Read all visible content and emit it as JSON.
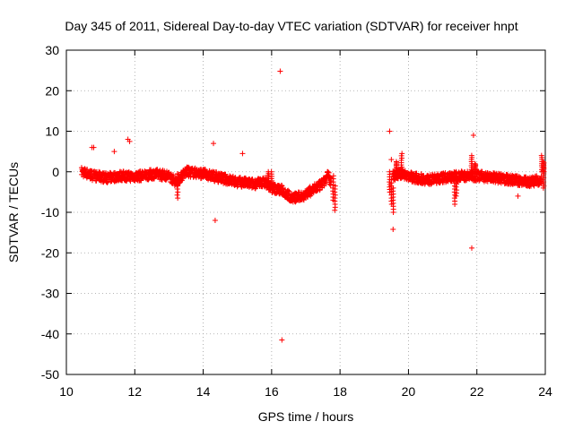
{
  "chart_data": {
    "type": "scatter",
    "title": "Day 345 of 2011, Sidereal Day-to-day VTEC variation (SDTVAR) for receiver hnpt",
    "xlabel": "GPS time / hours",
    "ylabel": "SDTVAR / TECUs",
    "xlim": [
      10,
      24
    ],
    "ylim": [
      -50,
      30
    ],
    "xticks": [
      10,
      12,
      14,
      16,
      18,
      20,
      22,
      24
    ],
    "yticks": [
      -50,
      -40,
      -30,
      -20,
      -10,
      0,
      10,
      20,
      30
    ],
    "grid": true,
    "marker": "+",
    "color": "#ff0000",
    "series": [
      {
        "name": "hnpt",
        "baseline": [
          [
            10.45,
            0.0
          ],
          [
            10.8,
            -1.0
          ],
          [
            11.2,
            -1.5
          ],
          [
            11.6,
            -1.0
          ],
          [
            11.9,
            -1.2
          ],
          [
            12.2,
            -1.0
          ],
          [
            12.6,
            -0.5
          ],
          [
            13.0,
            -1.0
          ],
          [
            13.2,
            -2.5
          ],
          [
            13.5,
            0.0
          ],
          [
            14.0,
            -0.5
          ],
          [
            14.5,
            -1.5
          ],
          [
            15.0,
            -2.5
          ],
          [
            15.5,
            -3.0
          ],
          [
            15.8,
            -2.5
          ],
          [
            16.0,
            -4.0
          ],
          [
            16.3,
            -4.5
          ],
          [
            16.6,
            -6.5
          ],
          [
            16.9,
            -6.0
          ],
          [
            17.2,
            -4.5
          ],
          [
            17.5,
            -3.0
          ],
          [
            17.65,
            -0.8
          ],
          [
            17.75,
            -3.0
          ],
          [
            19.55,
            -0.8
          ],
          [
            19.8,
            -0.5
          ],
          [
            20.2,
            -1.5
          ],
          [
            20.6,
            -2.0
          ],
          [
            21.0,
            -1.5
          ],
          [
            21.5,
            -1.0
          ],
          [
            22.0,
            -1.0
          ],
          [
            22.5,
            -1.5
          ],
          [
            23.0,
            -2.0
          ],
          [
            23.5,
            -2.5
          ],
          [
            23.9,
            -2.0
          ]
        ],
        "spikes": [
          [
            12.8,
            -2.0
          ],
          [
            13.25,
            -6.5
          ],
          [
            15.9,
            -3.5
          ],
          [
            16.0,
            -4.5
          ],
          [
            17.8,
            -7.0
          ],
          [
            17.85,
            -9.5
          ],
          [
            19.45,
            -5.0
          ],
          [
            19.5,
            -8.0
          ],
          [
            19.55,
            -10.0
          ],
          [
            19.6,
            -2.0
          ],
          [
            19.65,
            2.5
          ],
          [
            19.8,
            4.5
          ],
          [
            21.35,
            -8.0
          ],
          [
            21.4,
            -6.0
          ],
          [
            21.85,
            4.0
          ],
          [
            21.95,
            2.0
          ],
          [
            23.9,
            4.0
          ],
          [
            23.95,
            2.5
          ],
          [
            23.95,
            -4.0
          ]
        ],
        "outliers": [
          [
            10.75,
            6.0
          ],
          [
            10.8,
            6.0
          ],
          [
            11.4,
            5.0
          ],
          [
            11.8,
            8.0
          ],
          [
            11.85,
            7.5
          ],
          [
            14.3,
            7.0
          ],
          [
            14.35,
            -12.0
          ],
          [
            15.15,
            4.5
          ],
          [
            16.25,
            24.8
          ],
          [
            16.3,
            -41.5
          ],
          [
            19.45,
            10.0
          ],
          [
            19.5,
            3.0
          ],
          [
            19.55,
            -14.2
          ],
          [
            21.85,
            -18.8
          ],
          [
            21.9,
            9.0
          ],
          [
            23.2,
            -6.0
          ]
        ]
      }
    ]
  }
}
